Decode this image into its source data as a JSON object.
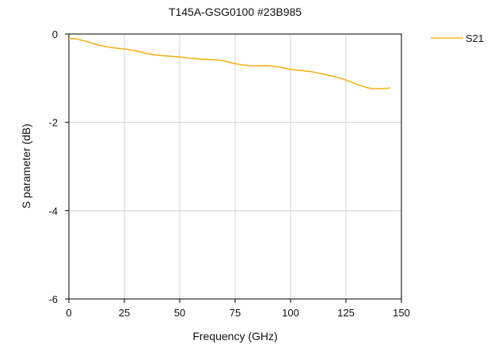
{
  "chart_data": {
    "type": "line",
    "title": "T145A-GSG0100 #23B985",
    "xlabel": "Frequency (GHz)",
    "ylabel": "S parameter (dB)",
    "xlim": [
      0,
      150
    ],
    "ylim": [
      -6,
      0
    ],
    "xticks": [
      "0",
      "25",
      "50",
      "75",
      "100",
      "125",
      "150"
    ],
    "yticks": [
      "0",
      "-2",
      "-4",
      "-6"
    ],
    "grid": "vertical",
    "legend_position": "right",
    "series": [
      {
        "name": "S21",
        "color": "#f5b21b",
        "points": [
          [
            0,
            -0.1
          ],
          [
            3,
            -0.11
          ],
          [
            5,
            -0.13
          ],
          [
            10,
            -0.2
          ],
          [
            15,
            -0.27
          ],
          [
            20,
            -0.31
          ],
          [
            25,
            -0.34
          ],
          [
            30,
            -0.38
          ],
          [
            35,
            -0.44
          ],
          [
            40,
            -0.48
          ],
          [
            45,
            -0.5
          ],
          [
            50,
            -0.52
          ],
          [
            55,
            -0.55
          ],
          [
            60,
            -0.57
          ],
          [
            65,
            -0.58
          ],
          [
            70,
            -0.61
          ],
          [
            75,
            -0.67
          ],
          [
            80,
            -0.71
          ],
          [
            85,
            -0.72
          ],
          [
            90,
            -0.72
          ],
          [
            95,
            -0.75
          ],
          [
            100,
            -0.8
          ],
          [
            105,
            -0.83
          ],
          [
            110,
            -0.86
          ],
          [
            115,
            -0.91
          ],
          [
            120,
            -0.97
          ],
          [
            125,
            -1.04
          ],
          [
            130,
            -1.14
          ],
          [
            135,
            -1.22
          ],
          [
            140,
            -1.24
          ],
          [
            145,
            -1.22
          ]
        ]
      }
    ]
  }
}
